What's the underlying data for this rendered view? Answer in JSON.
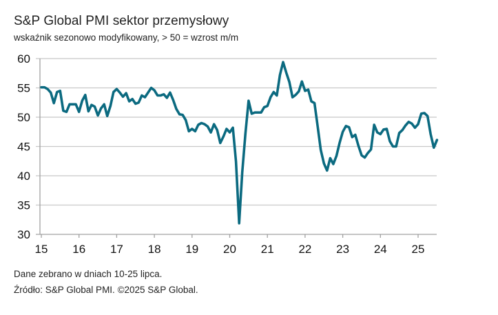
{
  "title": "S&P Global PMI sektor przemysłowy",
  "subtitle": "wskaźnik sezonowo modyfikowany, > 50 = wzrost m/m",
  "footer": {
    "line1": "Dane zebrano w dniach 10-25 lipca.",
    "line2": "Źródło: S&P Global PMI. ©2025 S&P Global."
  },
  "colors": {
    "line": "#0b6a80",
    "grid": "#c8c8c8",
    "axis": "#a0a0a0"
  },
  "chart_data": {
    "type": "line",
    "title": "S&P Global PMI sektor przemysłowy",
    "subtitle": "wskaźnik sezonowo modyfikowany, > 50 = wzrost m/m",
    "xlabel": "",
    "ylabel": "",
    "ylim": [
      30,
      60
    ],
    "yticks": [
      30,
      35,
      40,
      45,
      50,
      55,
      60
    ],
    "xticks": [
      "15",
      "16",
      "17",
      "18",
      "19",
      "20",
      "21",
      "22",
      "23",
      "24",
      "25"
    ],
    "x_start": "2015-01",
    "x_frequency": "monthly",
    "grid": true,
    "legend": "none",
    "series": [
      {
        "name": "PMI",
        "values": [
          55.1,
          55.1,
          54.8,
          54.2,
          52.4,
          54.3,
          54.5,
          51.1,
          50.9,
          52.2,
          52.2,
          52.2,
          50.9,
          52.8,
          53.8,
          51.0,
          52.1,
          51.8,
          50.3,
          51.5,
          52.2,
          50.2,
          51.9,
          54.3,
          54.8,
          54.2,
          53.5,
          54.1,
          52.7,
          53.1,
          52.3,
          52.5,
          53.7,
          53.4,
          54.2,
          55.0,
          54.6,
          53.7,
          53.7,
          53.9,
          53.3,
          54.2,
          52.9,
          51.4,
          50.5,
          50.4,
          49.5,
          47.6,
          48.0,
          47.6,
          48.7,
          49.0,
          48.8,
          48.4,
          47.4,
          48.8,
          47.8,
          45.6,
          46.7,
          48.0,
          47.4,
          48.2,
          42.4,
          31.9,
          40.6,
          47.2,
          52.8,
          50.6,
          50.8,
          50.8,
          50.8,
          51.7,
          51.9,
          53.4,
          54.3,
          53.7,
          57.2,
          59.4,
          57.6,
          56.0,
          53.4,
          53.8,
          54.4,
          56.1,
          54.5,
          54.7,
          52.7,
          52.4,
          48.5,
          44.4,
          42.1,
          40.9,
          43.0,
          42.0,
          43.4,
          45.6,
          47.5,
          48.5,
          48.3,
          46.6,
          47.0,
          45.1,
          43.5,
          43.1,
          43.9,
          44.5,
          48.7,
          47.4,
          47.1,
          47.9,
          48.0,
          45.9,
          45.0,
          45.0,
          47.3,
          47.8,
          48.6,
          49.2,
          48.9,
          48.2,
          48.8,
          50.6,
          50.7,
          50.2,
          47.1,
          44.8,
          46.1
        ]
      }
    ]
  }
}
